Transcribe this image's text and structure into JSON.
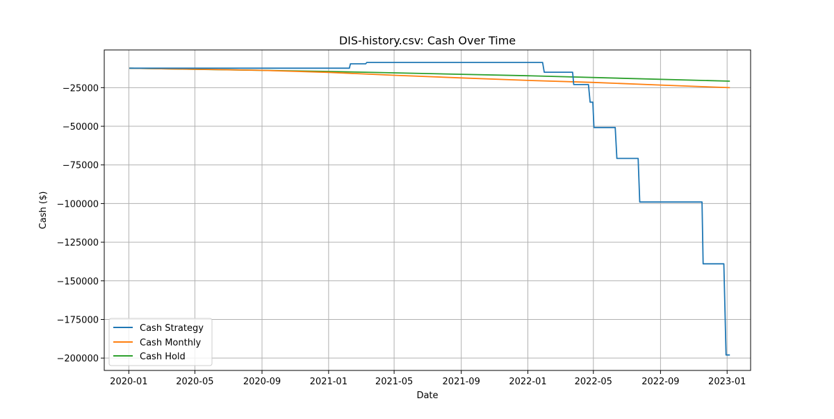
{
  "chart_data": {
    "type": "line",
    "title": "DIS-history.csv: Cash Over Time",
    "xlabel": "Date",
    "ylabel": "Cash ($)",
    "x_range": [
      "2019-11-17",
      "2023-02-13"
    ],
    "ylim": [
      -208000,
      -600
    ],
    "x_ticks": [
      "2020-01",
      "2020-05",
      "2020-09",
      "2021-01",
      "2021-05",
      "2021-09",
      "2022-01",
      "2022-05",
      "2022-09",
      "2023-01"
    ],
    "y_ticks": [
      -25000,
      -50000,
      -75000,
      -100000,
      -125000,
      -150000,
      -175000,
      -200000
    ],
    "y_tick_labels": [
      "−25000",
      "−50000",
      "−75000",
      "−100000",
      "−125000",
      "−150000",
      "−175000",
      "−200000"
    ],
    "grid": true,
    "legend_location": "lower-left",
    "series": [
      {
        "name": "Cash Strategy",
        "color": "#1f77b4",
        "step": true,
        "points": [
          [
            "2020-01-02",
            -12400
          ],
          [
            "2021-02-08",
            -12400
          ],
          [
            "2021-02-10",
            -9600
          ],
          [
            "2021-03-10",
            -9600
          ],
          [
            "2021-03-12",
            -8700
          ],
          [
            "2022-01-28",
            -8700
          ],
          [
            "2022-01-31",
            -15000
          ],
          [
            "2022-03-24",
            -15000
          ],
          [
            "2022-03-26",
            -23000
          ],
          [
            "2022-04-22",
            -23000
          ],
          [
            "2022-04-25",
            -34400
          ],
          [
            "2022-04-30",
            -34400
          ],
          [
            "2022-05-02",
            -50800
          ],
          [
            "2022-06-10",
            -50800
          ],
          [
            "2022-06-13",
            -70800
          ],
          [
            "2022-07-22",
            -70800
          ],
          [
            "2022-07-25",
            -99000
          ],
          [
            "2022-11-16",
            -99000
          ],
          [
            "2022-11-18",
            -139000
          ],
          [
            "2022-12-26",
            -139000
          ],
          [
            "2022-12-30",
            -198000
          ],
          [
            "2023-01-06",
            -198000
          ]
        ]
      },
      {
        "name": "Cash Monthly",
        "color": "#ff7f0e",
        "step": false,
        "points": [
          [
            "2020-01-02",
            -12400
          ],
          [
            "2020-09-01",
            -13800
          ],
          [
            "2021-01-01",
            -15100
          ],
          [
            "2021-05-01",
            -17000
          ],
          [
            "2021-09-01",
            -18700
          ],
          [
            "2022-01-01",
            -20300
          ],
          [
            "2022-05-01",
            -21600
          ],
          [
            "2022-09-01",
            -23300
          ],
          [
            "2023-01-06",
            -25000
          ]
        ]
      },
      {
        "name": "Cash Hold",
        "color": "#2ca02c",
        "step": false,
        "points": [
          [
            "2020-01-02",
            -12400
          ],
          [
            "2021-01-01",
            -14500
          ],
          [
            "2022-01-01",
            -17300
          ],
          [
            "2023-01-06",
            -20800
          ]
        ]
      }
    ]
  }
}
